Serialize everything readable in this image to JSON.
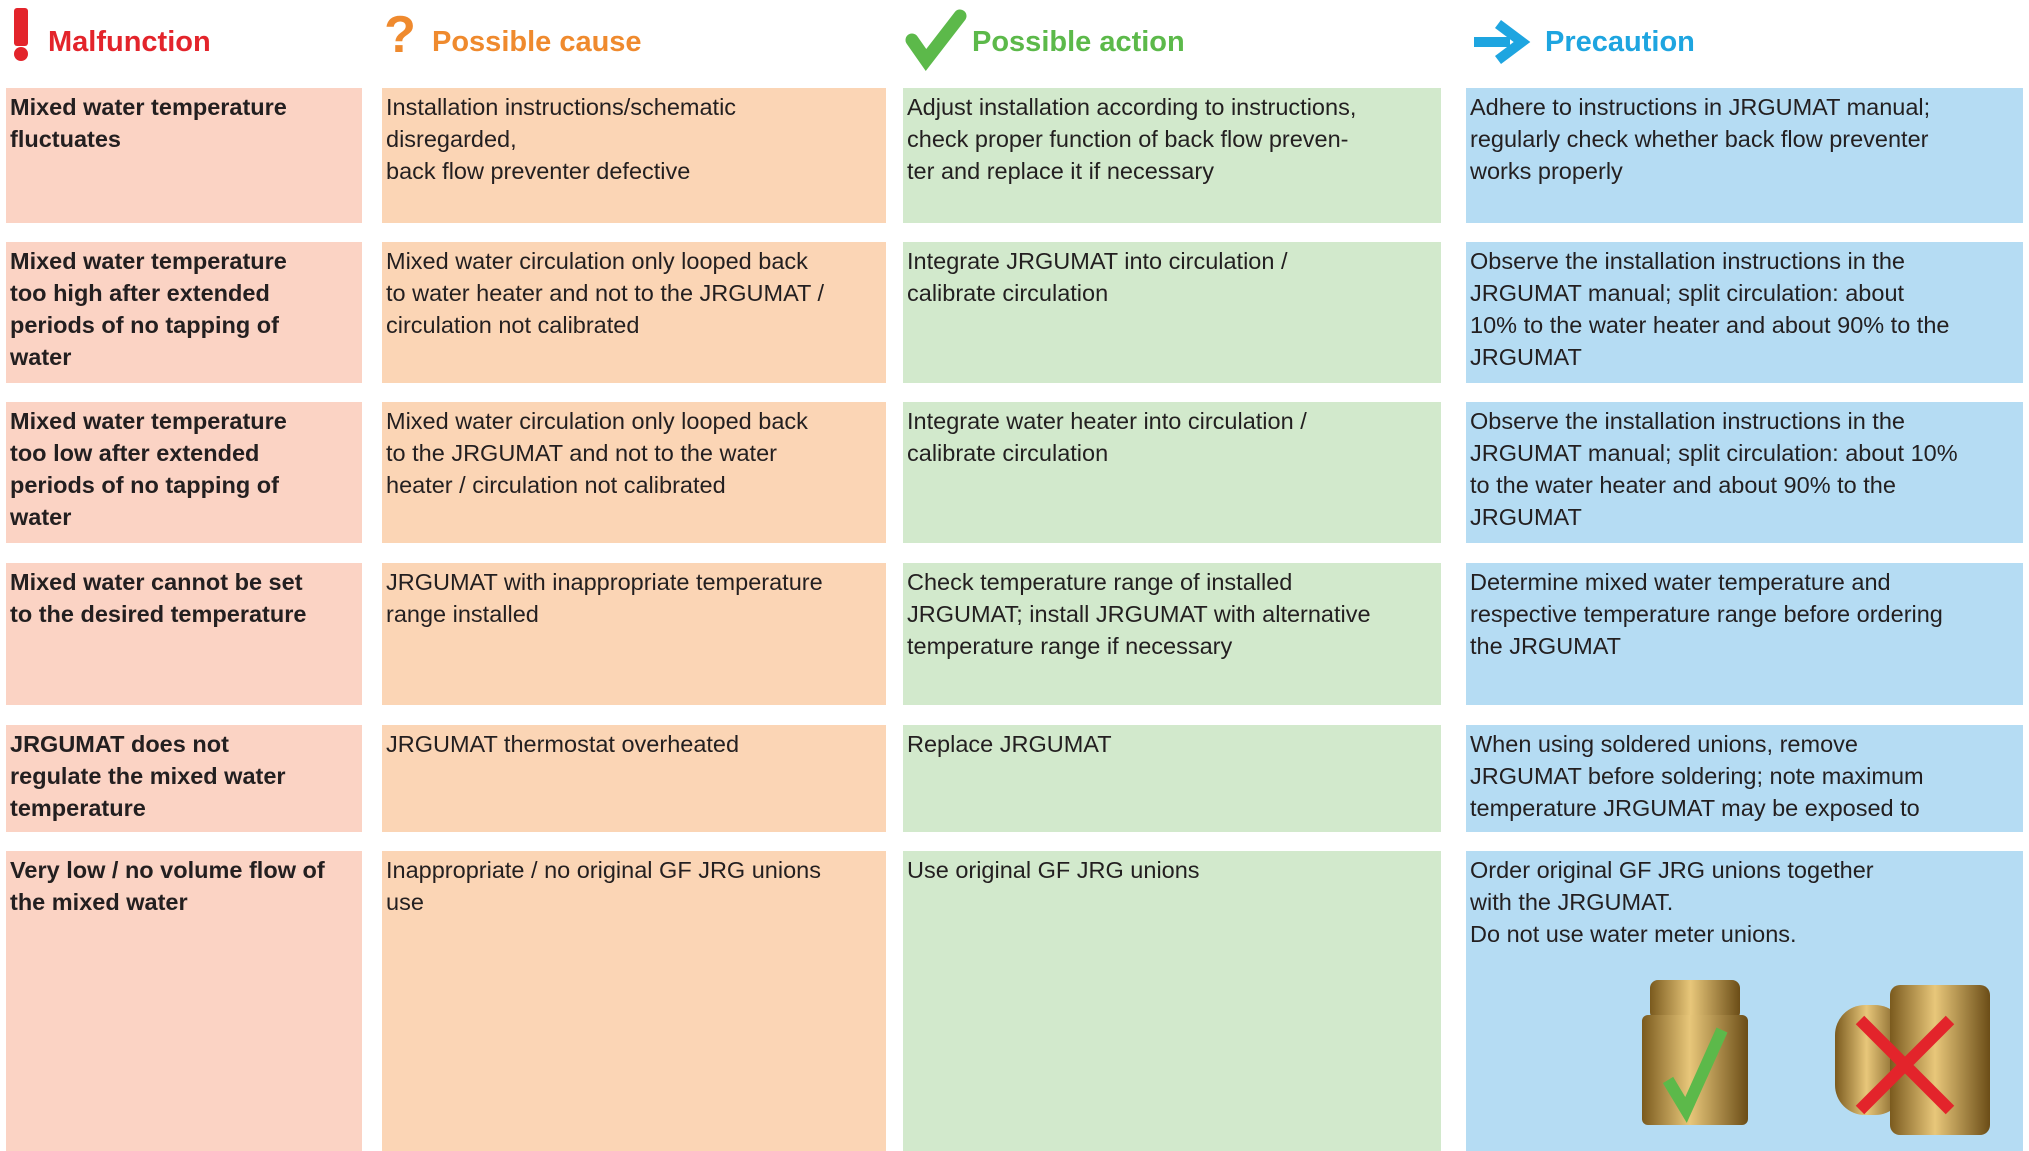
{
  "header": {
    "columns": [
      "Malfunction",
      "Possible cause",
      "Possible action",
      "Precaution"
    ]
  },
  "table": {
    "rows": [
      [
        [
          "Mixed water temperature",
          "fluctuates"
        ],
        [
          "Installation instructions/schematic",
          "disregarded,",
          "back flow preventer defective"
        ],
        [
          "Adjust installation according to instructions,",
          "check proper function of back flow preven-",
          "ter and replace it if necessary"
        ],
        [
          "Adhere to instructions in JRGUMAT manual;",
          "regularly check whether back flow preventer",
          "works properly"
        ]
      ],
      [
        [
          "Mixed water temperature",
          "too high after extended",
          "periods of no tapping of",
          "water"
        ],
        [
          "Mixed water circulation only looped back",
          "to water heater and not to the JRGUMAT /",
          "circulation not calibrated"
        ],
        [
          "Integrate JRGUMAT into circulation /",
          "calibrate circulation"
        ],
        [
          "Observe the installation instructions in the",
          "JRGUMAT manual; split circulation: about",
          "10% to the water heater and about 90% to the",
          "JRGUMAT"
        ]
      ],
      [
        [
          "Mixed water temperature",
          "too low after extended",
          "periods of no tapping of",
          "water"
        ],
        [
          "Mixed water circulation only looped back",
          "to the JRGUMAT and not to the water",
          "heater / circulation not calibrated"
        ],
        [
          "Integrate water heater into circulation /",
          "calibrate circulation"
        ],
        [
          "Observe the installation instructions in the",
          "JRGUMAT manual; split circulation: about 10%",
          "to the water heater and about 90% to the",
          "JRGUMAT"
        ]
      ],
      [
        [
          "Mixed water cannot be set",
          "to the desired temperature"
        ],
        [
          "JRGUMAT with inappropriate temperature",
          "range installed"
        ],
        [
          "Check temperature range of installed",
          "JRGUMAT; install JRGUMAT with alternative",
          "temperature range if necessary"
        ],
        [
          "Determine mixed water temperature and",
          "respective temperature range before ordering",
          "the JRGUMAT"
        ]
      ],
      [
        [
          "JRGUMAT does not",
          "regulate the mixed water",
          "temperature"
        ],
        [
          "JRGUMAT thermostat overheated"
        ],
        [
          "Replace JRGUMAT"
        ],
        [
          "When using soldered unions, remove",
          "JRGUMAT before soldering; note maximum",
          "temperature JRGUMAT may be exposed to"
        ]
      ],
      [
        [
          "Very low / no volume flow of",
          "the mixed water"
        ],
        [
          "Inappropriate / no original GF JRG unions",
          "use"
        ],
        [
          "Use original GF JRG unions"
        ],
        [
          "Order original GF JRG unions together",
          "with the JRGUMAT.",
          "Do not use water meter unions."
        ]
      ]
    ]
  }
}
